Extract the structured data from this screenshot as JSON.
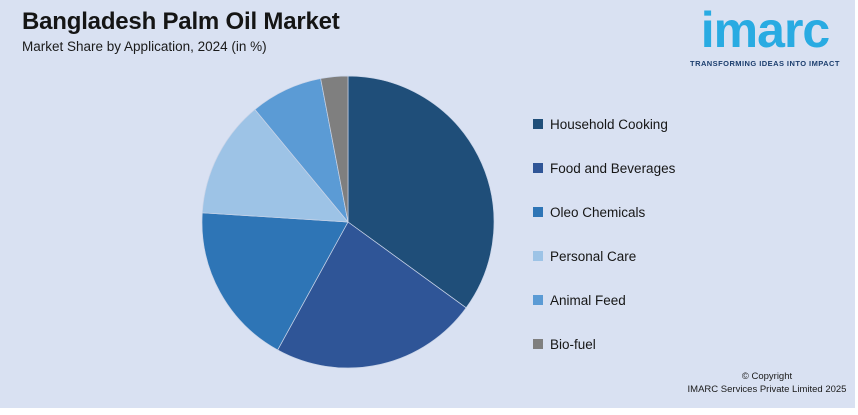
{
  "header": {
    "title": "Bangladesh Palm Oil Market",
    "subtitle": "Market Share by Application, 2024 (in %)"
  },
  "logo": {
    "brand": "imarc",
    "tagline": "TRANSFORMING IDEAS INTO IMPACT",
    "brand_color": "#29ABE2",
    "tagline_color": "#1C3E6E"
  },
  "chart_data": {
    "type": "pie",
    "title": "Bangladesh Palm Oil Market",
    "subtitle": "Market Share by Application, 2024 (in %)",
    "unit": "percent",
    "start_angle_deg": 0,
    "direction": "clockwise",
    "legend_position": "right",
    "segments": [
      {
        "label": "Household Cooking",
        "value": 35,
        "color": "#1F4E79"
      },
      {
        "label": "Food and Beverages",
        "value": 23,
        "color": "#2F5597"
      },
      {
        "label": "Oleo Chemicals",
        "value": 18,
        "color": "#2E75B6"
      },
      {
        "label": "Personal Care",
        "value": 13,
        "color": "#9DC3E6"
      },
      {
        "label": "Animal Feed",
        "value": 8,
        "color": "#5B9BD5"
      },
      {
        "label": "Bio-fuel",
        "value": 3,
        "color": "#7F7F7F"
      }
    ]
  },
  "footer": {
    "copyright_line1": "© Copyright",
    "copyright_line2": "IMARC Services Private Limited 2025"
  },
  "colors": {
    "background": "#D9E1F2",
    "text": "#161616",
    "slice_border": "#C9D4E8"
  }
}
